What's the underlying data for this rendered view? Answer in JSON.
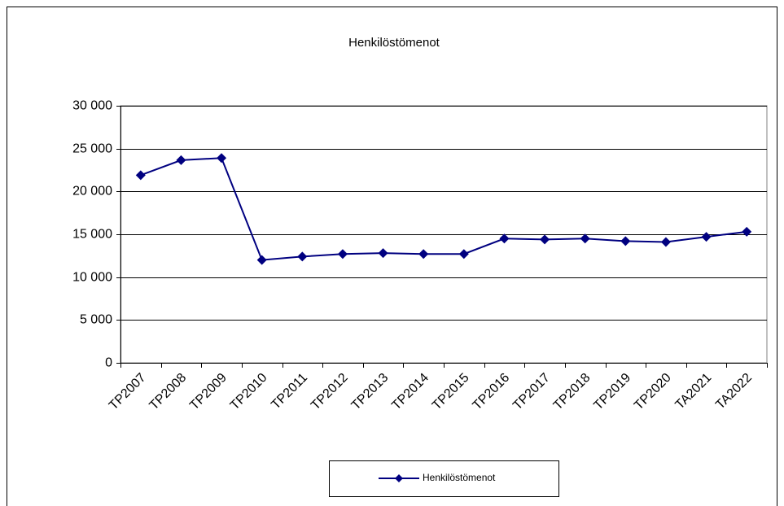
{
  "chart_data": {
    "type": "line",
    "title": "Henkilöstömenot",
    "categories": [
      "TP2007",
      "TP2008",
      "TP2009",
      "TP2010",
      "TP2011",
      "TP2012",
      "TP2013",
      "TP2014",
      "TP2015",
      "TP2016",
      "TP2017",
      "TP2018",
      "TP2019",
      "TP2020",
      "TA2021",
      "TA2022"
    ],
    "series": [
      {
        "name": "Henkilöstömenot",
        "color": "#000080",
        "values": [
          21900,
          23650,
          23900,
          12000,
          12400,
          12700,
          12800,
          12700,
          12700,
          14500,
          14400,
          14500,
          14200,
          14100,
          14700,
          15300
        ]
      }
    ],
    "ylim": [
      0,
      30000
    ],
    "yticks": [
      0,
      {
        "value": 5000,
        "label": "5 000"
      },
      {
        "value": 10000,
        "label": "10 000"
      },
      {
        "value": 15000,
        "label": "15 000"
      },
      {
        "value": 20000,
        "label": "20 000"
      },
      {
        "value": 25000,
        "label": "25 000"
      },
      {
        "value": 30000,
        "label": "30 000"
      }
    ],
    "grid": true,
    "legend": "bottom"
  }
}
